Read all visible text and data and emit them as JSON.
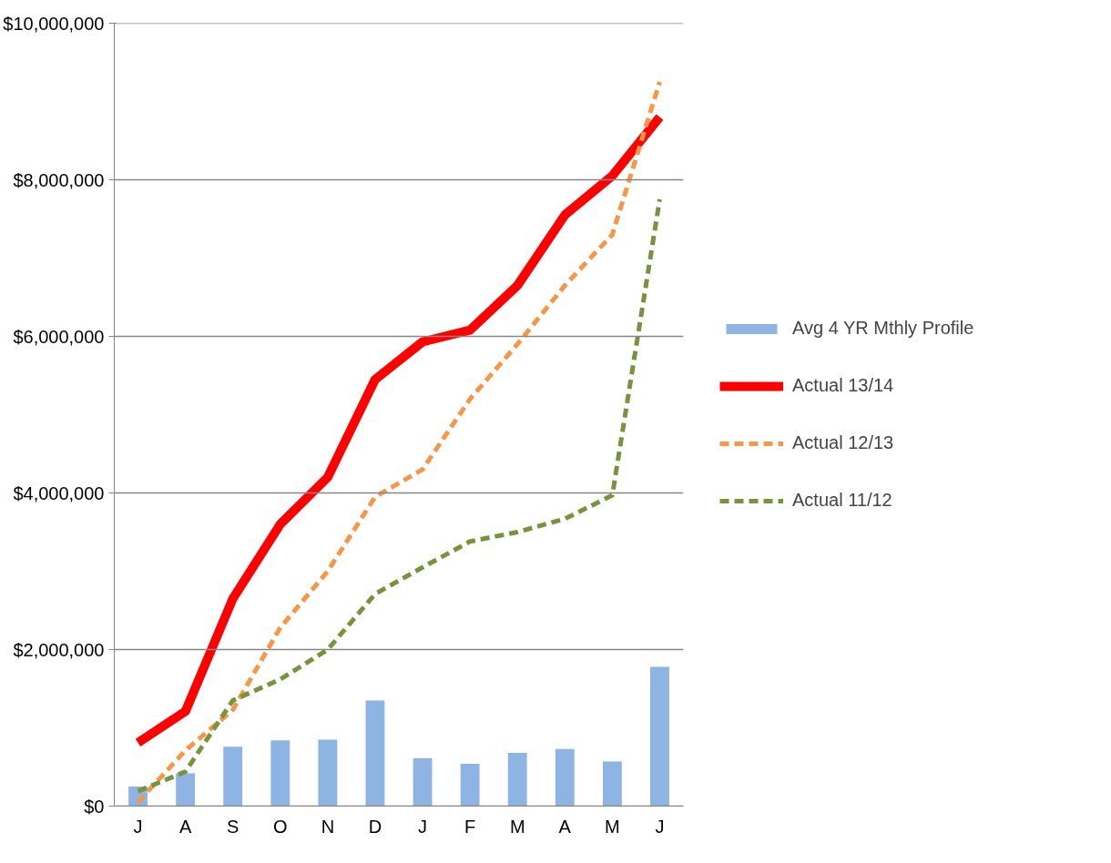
{
  "chart_data": {
    "type": "line",
    "categories": [
      "J",
      "A",
      "S",
      "O",
      "N",
      "D",
      "J",
      "F",
      "M",
      "A",
      "M",
      "J"
    ],
    "series": [
      {
        "name": "Avg 4 YR Mthly Profile",
        "type": "bar",
        "color": "#8eb4e3",
        "values": [
          250000,
          420000,
          760000,
          840000,
          850000,
          1350000,
          610000,
          540000,
          680000,
          730000,
          570000,
          1780000
        ]
      },
      {
        "name": "Actual 13/14",
        "line_style": "solid",
        "color": "#ff0000",
        "values": [
          810000,
          1210000,
          2650000,
          3600000,
          4200000,
          5450000,
          5930000,
          6080000,
          6650000,
          7550000,
          8050000,
          8800000
        ]
      },
      {
        "name": "Actual 12/13",
        "line_style": "dashed",
        "color": "#f79646",
        "values": [
          50000,
          710000,
          1230000,
          2280000,
          3000000,
          3950000,
          4300000,
          5200000,
          5900000,
          6650000,
          7300000,
          9250000
        ]
      },
      {
        "name": "Actual 11/12",
        "line_style": "dashed",
        "color": "#77933c",
        "values": [
          190000,
          440000,
          1350000,
          1620000,
          2000000,
          2710000,
          3050000,
          3380000,
          3500000,
          3670000,
          3970000,
          7750000
        ]
      }
    ],
    "ylim": [
      0,
      10000000
    ],
    "yticks": [
      {
        "value": 0,
        "label": "$0"
      },
      {
        "value": 2000000,
        "label": "$2,000,000"
      },
      {
        "value": 4000000,
        "label": "$4,000,000"
      },
      {
        "value": 6000000,
        "label": "$6,000,000"
      },
      {
        "value": 8000000,
        "label": "$8,000,000"
      },
      {
        "value": 10000000,
        "label": "$10,000,000"
      }
    ],
    "grid": "y",
    "legend": "right",
    "marker": "none"
  }
}
